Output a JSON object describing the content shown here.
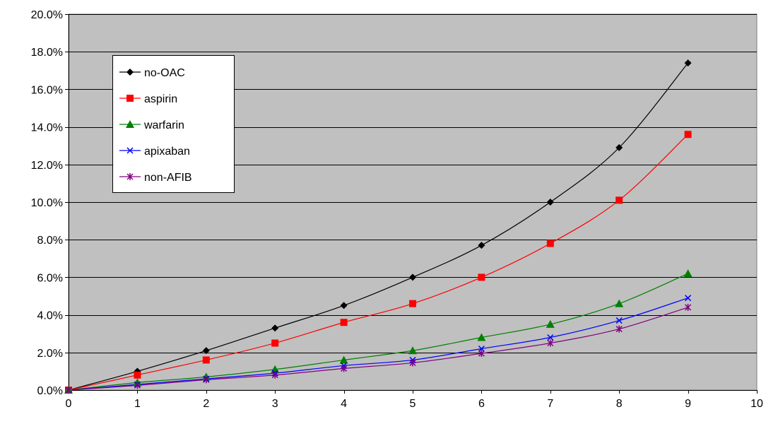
{
  "chart_data": {
    "type": "line",
    "title": "",
    "xlabel": "",
    "ylabel": "",
    "xlim": [
      0,
      10
    ],
    "ylim": [
      0,
      20
    ],
    "x_ticks": [
      "0",
      "1",
      "2",
      "3",
      "4",
      "5",
      "6",
      "7",
      "8",
      "9",
      "10"
    ],
    "y_ticks": [
      "0.0%",
      "2.0%",
      "4.0%",
      "6.0%",
      "8.0%",
      "10.0%",
      "12.0%",
      "14.0%",
      "16.0%",
      "18.0%",
      "20.0%"
    ],
    "grid": "horizontal",
    "legend_position": "top-left",
    "plot_background": "#c0c0c0",
    "x": [
      0,
      1,
      2,
      3,
      4,
      5,
      6,
      7,
      8,
      9
    ],
    "series": [
      {
        "name": "no-OAC",
        "color": "#000000",
        "marker": "diamond",
        "values": [
          0.0,
          1.0,
          2.1,
          3.3,
          4.5,
          6.0,
          7.7,
          10.0,
          12.9,
          17.4
        ]
      },
      {
        "name": "aspirin",
        "color": "#ff0000",
        "marker": "square",
        "values": [
          0.0,
          0.8,
          1.6,
          2.5,
          3.6,
          4.6,
          6.0,
          7.8,
          10.1,
          13.6
        ]
      },
      {
        "name": "warfarin",
        "color": "#008000",
        "marker": "triangle",
        "values": [
          0.0,
          0.4,
          0.7,
          1.1,
          1.6,
          2.1,
          2.8,
          3.5,
          4.6,
          6.2
        ]
      },
      {
        "name": "apixaban",
        "color": "#0000ff",
        "marker": "x",
        "values": [
          0.0,
          0.3,
          0.6,
          0.9,
          1.3,
          1.6,
          2.2,
          2.8,
          3.7,
          4.9
        ]
      },
      {
        "name": "non-AFIB",
        "color": "#800080",
        "marker": "star",
        "values": [
          0.0,
          0.25,
          0.55,
          0.8,
          1.15,
          1.45,
          1.95,
          2.5,
          3.25,
          4.4
        ]
      }
    ]
  }
}
